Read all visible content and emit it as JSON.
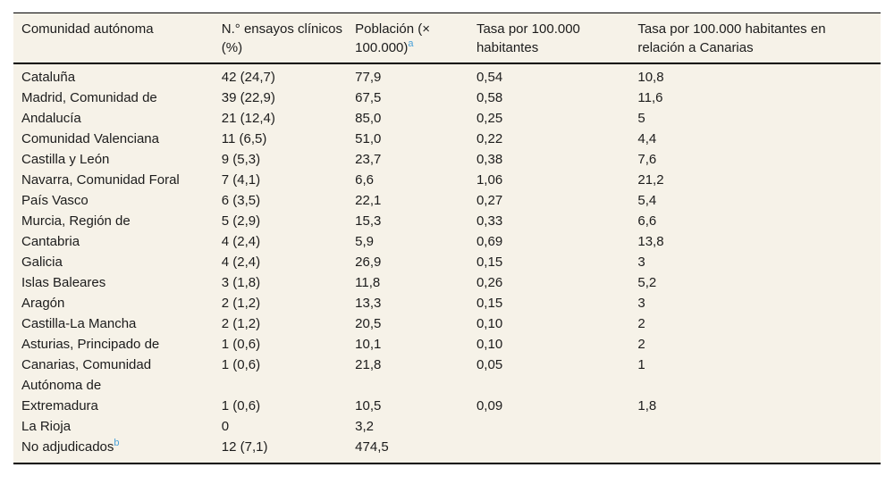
{
  "colors": {
    "table_background": "#f6f2e8",
    "page_background": "#ffffff",
    "rule": "#000000",
    "footnote_marker": "#4aa1d8",
    "text": "#1c1c1c"
  },
  "table": {
    "columns": [
      {
        "label": "Comunidad autónoma"
      },
      {
        "label": "N.° ensayos clínicos (%)"
      },
      {
        "label": "Población (× 100.000)",
        "superscript": "a"
      },
      {
        "label": "Tasa por 100.000 habitantes"
      },
      {
        "label": "Tasa por 100.000 habitantes en relación a Canarias"
      }
    ],
    "rows": [
      {
        "comunidad": "Cataluña",
        "ensayos": "42 (24,7)",
        "poblacion": "77,9",
        "tasa": "0,54",
        "tasa_canarias": "10,8"
      },
      {
        "comunidad": "Madrid, Comunidad de",
        "ensayos": "39 (22,9)",
        "poblacion": "67,5",
        "tasa": "0,58",
        "tasa_canarias": "11,6"
      },
      {
        "comunidad": "Andalucía",
        "ensayos": "21 (12,4)",
        "poblacion": "85,0",
        "tasa": "0,25",
        "tasa_canarias": "5"
      },
      {
        "comunidad": "Comunidad Valenciana",
        "ensayos": "11 (6,5)",
        "poblacion": "51,0",
        "tasa": "0,22",
        "tasa_canarias": "4,4"
      },
      {
        "comunidad": "Castilla y León",
        "ensayos": "9 (5,3)",
        "poblacion": "23,7",
        "tasa": "0,38",
        "tasa_canarias": "7,6"
      },
      {
        "comunidad": "Navarra, Comunidad Foral",
        "ensayos": "7 (4,1)",
        "poblacion": "6,6",
        "tasa": "1,06",
        "tasa_canarias": "21,2"
      },
      {
        "comunidad": "País Vasco",
        "ensayos": "6 (3,5)",
        "poblacion": "22,1",
        "tasa": "0,27",
        "tasa_canarias": "5,4"
      },
      {
        "comunidad": "Murcia, Región de",
        "ensayos": "5 (2,9)",
        "poblacion": "15,3",
        "tasa": "0,33",
        "tasa_canarias": "6,6"
      },
      {
        "comunidad": "Cantabria",
        "ensayos": "4 (2,4)",
        "poblacion": "5,9",
        "tasa": "0,69",
        "tasa_canarias": "13,8"
      },
      {
        "comunidad": "Galicia",
        "ensayos": "4 (2,4)",
        "poblacion": "26,9",
        "tasa": "0,15",
        "tasa_canarias": "3"
      },
      {
        "comunidad": "Islas Baleares",
        "ensayos": "3 (1,8)",
        "poblacion": "11,8",
        "tasa": "0,26",
        "tasa_canarias": "5,2"
      },
      {
        "comunidad": "Aragón",
        "ensayos": "2 (1,2)",
        "poblacion": "13,3",
        "tasa": "0,15",
        "tasa_canarias": "3"
      },
      {
        "comunidad": "Castilla-La Mancha",
        "ensayos": "2 (1,2)",
        "poblacion": "20,5",
        "tasa": "0,10",
        "tasa_canarias": "2"
      },
      {
        "comunidad": "Asturias, Principado de",
        "ensayos": "1 (0,6)",
        "poblacion": "10,1",
        "tasa": "0,10",
        "tasa_canarias": "2"
      },
      {
        "comunidad": "Canarias, Comunidad Autónoma de",
        "ensayos": "1 (0,6)",
        "poblacion": "21,8",
        "tasa": "0,05",
        "tasa_canarias": "1"
      },
      {
        "comunidad": "Extremadura",
        "ensayos": "1 (0,6)",
        "poblacion": "10,5",
        "tasa": "0,09",
        "tasa_canarias": "1,8"
      },
      {
        "comunidad": "La Rioja",
        "ensayos": "0",
        "poblacion": "3,2",
        "tasa": "",
        "tasa_canarias": ""
      },
      {
        "comunidad": "No adjudicados",
        "superscript": "b",
        "ensayos": "12 (7,1)",
        "poblacion": "474,5",
        "tasa": "",
        "tasa_canarias": ""
      }
    ]
  }
}
